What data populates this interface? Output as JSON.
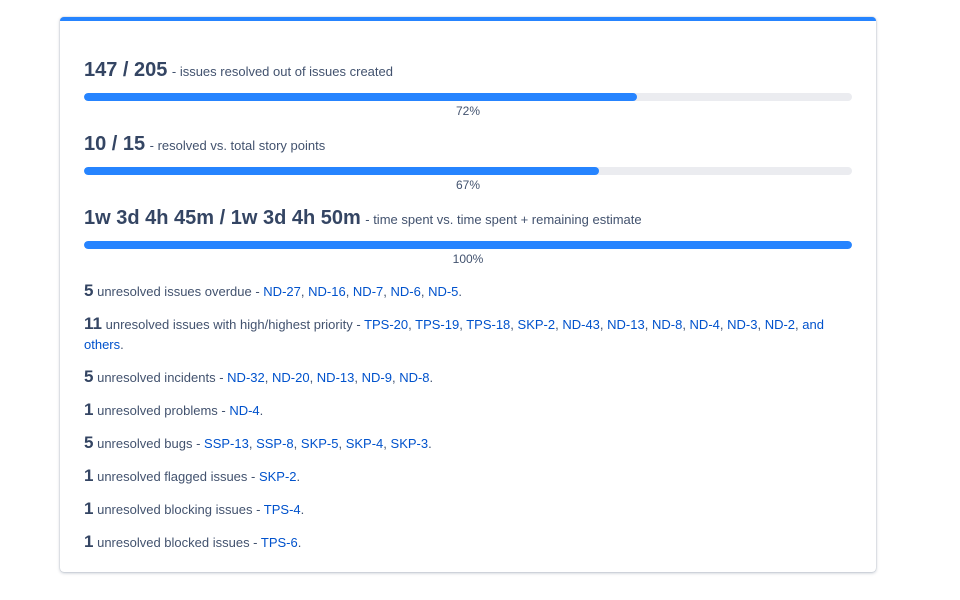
{
  "accent_color": "#2684ff",
  "track_color": "#ebecf0",
  "link_color": "#0052cc",
  "metrics": [
    {
      "value": "147 / 205",
      "desc": "- issues resolved out of issues created",
      "progress_pct": 72,
      "pct_label": "72%"
    },
    {
      "value": "10 / 15",
      "desc": "- resolved vs. total story points",
      "progress_pct": 67,
      "pct_label": "67%"
    },
    {
      "value": "1w 3d 4h 45m / 1w 3d 4h 50m",
      "desc": "- time spent vs. time spent + remaining estimate",
      "progress_pct": 100,
      "pct_label": "100%"
    }
  ],
  "issue_lines": [
    {
      "count": "5",
      "label": "unresolved issues overdue - ",
      "links": [
        "ND-27",
        "ND-16",
        "ND-7",
        "ND-6",
        "ND-5"
      ],
      "suffix": "."
    },
    {
      "count": "11",
      "label": "unresolved issues with high/highest priority - ",
      "links": [
        "TPS-20",
        "TPS-19",
        "TPS-18",
        "SKP-2",
        "ND-43",
        "ND-13",
        "ND-8",
        "ND-4",
        "ND-3",
        "ND-2"
      ],
      "and_others": "and others",
      "suffix": "."
    },
    {
      "count": "5",
      "label": "unresolved incidents - ",
      "links": [
        "ND-32",
        "ND-20",
        "ND-13",
        "ND-9",
        "ND-8"
      ],
      "suffix": "."
    },
    {
      "count": "1",
      "label": "unresolved problems - ",
      "links": [
        "ND-4"
      ],
      "suffix": "."
    },
    {
      "count": "5",
      "label": "unresolved bugs - ",
      "links": [
        "SSP-13",
        "SSP-8",
        "SKP-5",
        "SKP-4",
        "SKP-3"
      ],
      "suffix": "."
    },
    {
      "count": "1",
      "label": "unresolved flagged issues - ",
      "links": [
        "SKP-2"
      ],
      "suffix": "."
    },
    {
      "count": "1",
      "label": "unresolved blocking issues - ",
      "links": [
        "TPS-4"
      ],
      "suffix": "."
    },
    {
      "count": "1",
      "label": "unresolved blocked issues - ",
      "links": [
        "TPS-6"
      ],
      "suffix": "."
    }
  ]
}
